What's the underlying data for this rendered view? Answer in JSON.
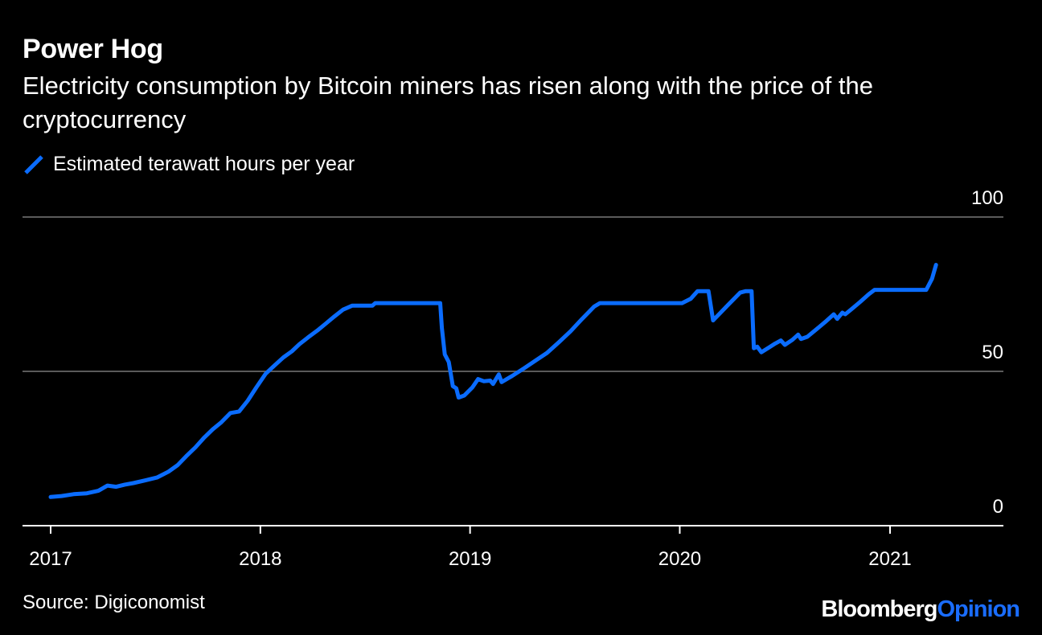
{
  "header": {
    "title": "Power Hog",
    "subtitle": "Electricity consumption by Bitcoin miners has risen along with the price of the cryptocurrency"
  },
  "footer": {
    "source": "Source: Digiconomist",
    "brand_primary": "Bloomberg",
    "brand_secondary": "Opinion"
  },
  "colors": {
    "background": "#000000",
    "series": "#0a6cff",
    "grid": "#5a5a5a",
    "text": "#ffffff"
  },
  "chart_data": {
    "type": "line",
    "title": "Power Hog",
    "subtitle": "Electricity consumption by Bitcoin miners has risen along with the price of the cryptocurrency",
    "xlabel": "",
    "ylabel": "",
    "ylim": [
      0,
      100
    ],
    "y_ticks": [
      "0",
      "50",
      "100"
    ],
    "x_ticks": [
      "2017",
      "2018",
      "2019",
      "2020",
      "2021"
    ],
    "grid": true,
    "legend": "top-left",
    "series": [
      {
        "name": "Estimated terawatt hours per year",
        "points": [
          [
            "2017-01-01",
            9.3
          ],
          [
            "2017-01-20",
            9.6
          ],
          [
            "2017-02-10",
            10.2
          ],
          [
            "2017-03-05",
            10.5
          ],
          [
            "2017-03-25",
            11.3
          ],
          [
            "2017-04-10",
            13.0
          ],
          [
            "2017-04-25",
            12.6
          ],
          [
            "2017-05-10",
            13.3
          ],
          [
            "2017-05-25",
            13.8
          ],
          [
            "2017-06-15",
            14.7
          ],
          [
            "2017-07-05",
            15.6
          ],
          [
            "2017-07-25",
            17.5
          ],
          [
            "2017-08-10",
            19.6
          ],
          [
            "2017-08-25",
            22.5
          ],
          [
            "2017-09-10",
            25.4
          ],
          [
            "2017-09-25",
            28.5
          ],
          [
            "2017-10-10",
            31.2
          ],
          [
            "2017-10-25",
            33.5
          ],
          [
            "2017-11-10",
            36.5
          ],
          [
            "2017-11-25",
            37.0
          ],
          [
            "2017-12-10",
            40.5
          ],
          [
            "2017-12-25",
            44.8
          ],
          [
            "2018-01-10",
            49.2
          ],
          [
            "2018-01-25",
            51.8
          ],
          [
            "2018-02-10",
            54.5
          ],
          [
            "2018-02-25",
            56.5
          ],
          [
            "2018-03-10",
            58.8
          ],
          [
            "2018-03-25",
            61.0
          ],
          [
            "2018-04-10",
            63.2
          ],
          [
            "2018-04-25",
            65.5
          ],
          [
            "2018-05-10",
            67.8
          ],
          [
            "2018-05-25",
            70.0
          ],
          [
            "2018-06-10",
            71.3
          ],
          [
            "2018-07-15",
            71.3
          ],
          [
            "2018-07-20",
            72.1
          ],
          [
            "2018-08-15",
            72.1
          ],
          [
            "2018-10-01",
            72.1
          ],
          [
            "2018-11-10",
            72.1
          ],
          [
            "2018-11-13",
            64.0
          ],
          [
            "2018-11-18",
            55.5
          ],
          [
            "2018-11-25",
            53.0
          ],
          [
            "2018-12-02",
            45.2
          ],
          [
            "2018-12-08",
            44.5
          ],
          [
            "2018-12-12",
            41.5
          ],
          [
            "2018-12-22",
            42.2
          ],
          [
            "2019-01-05",
            44.8
          ],
          [
            "2019-01-15",
            47.5
          ],
          [
            "2019-01-25",
            46.8
          ],
          [
            "2019-02-05",
            47.0
          ],
          [
            "2019-02-10",
            45.9
          ],
          [
            "2019-02-20",
            49.0
          ],
          [
            "2019-02-25",
            46.5
          ],
          [
            "2019-03-15",
            48.5
          ],
          [
            "2019-04-05",
            51.0
          ],
          [
            "2019-04-25",
            53.5
          ],
          [
            "2019-05-15",
            56.0
          ],
          [
            "2019-06-05",
            59.5
          ],
          [
            "2019-06-25",
            63.0
          ],
          [
            "2019-07-15",
            67.0
          ],
          [
            "2019-08-05",
            71.0
          ],
          [
            "2019-08-15",
            72.1
          ],
          [
            "2019-10-15",
            72.1
          ],
          [
            "2019-12-15",
            72.1
          ],
          [
            "2020-01-05",
            72.1
          ],
          [
            "2020-01-20",
            73.5
          ],
          [
            "2020-02-01",
            76.0
          ],
          [
            "2020-02-20",
            76.0
          ],
          [
            "2020-02-28",
            66.5
          ],
          [
            "2020-03-25",
            71.5
          ],
          [
            "2020-04-15",
            75.5
          ],
          [
            "2020-04-25",
            76.0
          ],
          [
            "2020-05-05",
            76.0
          ],
          [
            "2020-05-09",
            57.5
          ],
          [
            "2020-05-15",
            58.0
          ],
          [
            "2020-05-22",
            56.2
          ],
          [
            "2020-06-05",
            57.8
          ],
          [
            "2020-06-15",
            59.0
          ],
          [
            "2020-06-25",
            60.0
          ],
          [
            "2020-07-02",
            58.6
          ],
          [
            "2020-07-15",
            60.2
          ],
          [
            "2020-07-25",
            61.9
          ],
          [
            "2020-07-30",
            60.5
          ],
          [
            "2020-08-10",
            61.2
          ],
          [
            "2020-08-25",
            63.5
          ],
          [
            "2020-09-10",
            66.0
          ],
          [
            "2020-09-25",
            68.5
          ],
          [
            "2020-10-01",
            67.0
          ],
          [
            "2020-10-10",
            69.0
          ],
          [
            "2020-10-15",
            68.5
          ],
          [
            "2020-10-25",
            70.0
          ],
          [
            "2020-11-10",
            72.5
          ],
          [
            "2020-11-25",
            75.0
          ],
          [
            "2020-12-05",
            76.4
          ],
          [
            "2021-01-15",
            76.4
          ],
          [
            "2021-02-25",
            76.4
          ],
          [
            "2021-03-05",
            76.4
          ],
          [
            "2021-03-15",
            80.0
          ],
          [
            "2021-03-22",
            84.5
          ]
        ]
      }
    ]
  }
}
